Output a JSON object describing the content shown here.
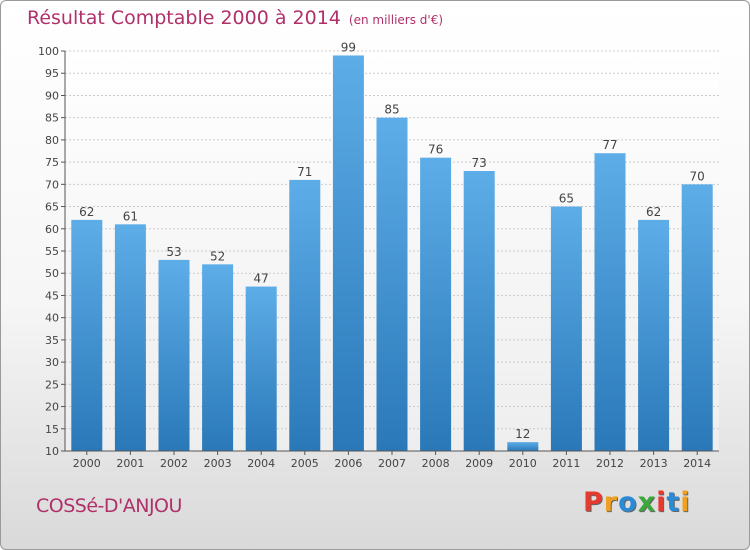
{
  "header": {
    "title": "Résultat Comptable 2000 à 2014",
    "subtitle": "(en milliers d'€)"
  },
  "footer": {
    "city": "COSSé-D'ANJOU",
    "logo": "Proxiti",
    "logo_colors": [
      "#e63a2e",
      "#f0a020",
      "#2a8ad6",
      "#3aa83a",
      "#e63a2e",
      "#2a8ad6",
      "#f0a020"
    ]
  },
  "chart_data": {
    "type": "bar",
    "title": "Résultat Comptable 2000 à 2014",
    "subtitle": "(en milliers d'€)",
    "categories": [
      "2000",
      "2001",
      "2002",
      "2003",
      "2004",
      "2005",
      "2006",
      "2007",
      "2008",
      "2009",
      "2010",
      "2011",
      "2012",
      "2013",
      "2014"
    ],
    "values": [
      62,
      61,
      53,
      52,
      47,
      71,
      99,
      85,
      76,
      73,
      12,
      65,
      77,
      62,
      70
    ],
    "yticks": [
      10,
      15,
      20,
      25,
      30,
      35,
      40,
      45,
      50,
      55,
      60,
      65,
      70,
      75,
      80,
      85,
      90,
      95,
      100
    ],
    "ylim": [
      10,
      100
    ],
    "grid": true,
    "bar_color_top": "#5dade8",
    "bar_color_bottom": "#2a78b8",
    "label_color": "#444444"
  }
}
